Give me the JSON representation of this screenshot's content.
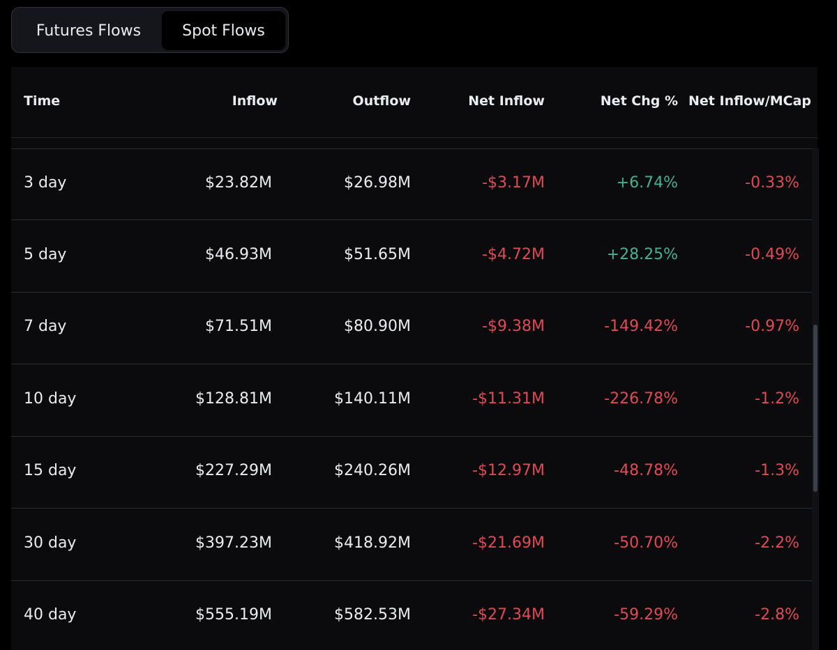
{
  "tabs": {
    "futures_label": "Futures Flows",
    "spot_label": "Spot Flows",
    "active": "Spot Flows"
  },
  "table": {
    "headers": [
      "Time",
      "Inflow",
      "Outflow",
      "Net Inflow",
      "Net Chg %",
      "Net Inflow/MCap"
    ],
    "rows": [
      {
        "time": "3 day",
        "inflow": "$23.82M",
        "outflow": "$26.98M",
        "net_inflow": "-$3.17M",
        "net_chg": "+6.74%",
        "net_mcap": "-0.33%"
      },
      {
        "time": "5 day",
        "inflow": "$46.93M",
        "outflow": "$51.65M",
        "net_inflow": "-$4.72M",
        "net_chg": "+28.25%",
        "net_mcap": "-0.49%"
      },
      {
        "time": "7 day",
        "inflow": "$71.51M",
        "outflow": "$80.90M",
        "net_inflow": "-$9.38M",
        "net_chg": "-149.42%",
        "net_mcap": "-0.97%"
      },
      {
        "time": "10 day",
        "inflow": "$128.81M",
        "outflow": "$140.11M",
        "net_inflow": "-$11.31M",
        "net_chg": "-226.78%",
        "net_mcap": "-1.2%"
      },
      {
        "time": "15 day",
        "inflow": "$227.29M",
        "outflow": "$240.26M",
        "net_inflow": "-$12.97M",
        "net_chg": "-48.78%",
        "net_mcap": "-1.3%"
      },
      {
        "time": "30 day",
        "inflow": "$397.23M",
        "outflow": "$418.92M",
        "net_inflow": "-$21.69M",
        "net_chg": "-50.70%",
        "net_mcap": "-2.2%"
      },
      {
        "time": "40 day",
        "inflow": "$555.19M",
        "outflow": "$582.53M",
        "net_inflow": "-$27.34M",
        "net_chg": "-59.29%",
        "net_mcap": "-2.8%"
      }
    ]
  },
  "colors": {
    "positive": "#45b28e",
    "negative": "#e04a55",
    "text": "#eaecef",
    "background": "#0b0b0e"
  }
}
